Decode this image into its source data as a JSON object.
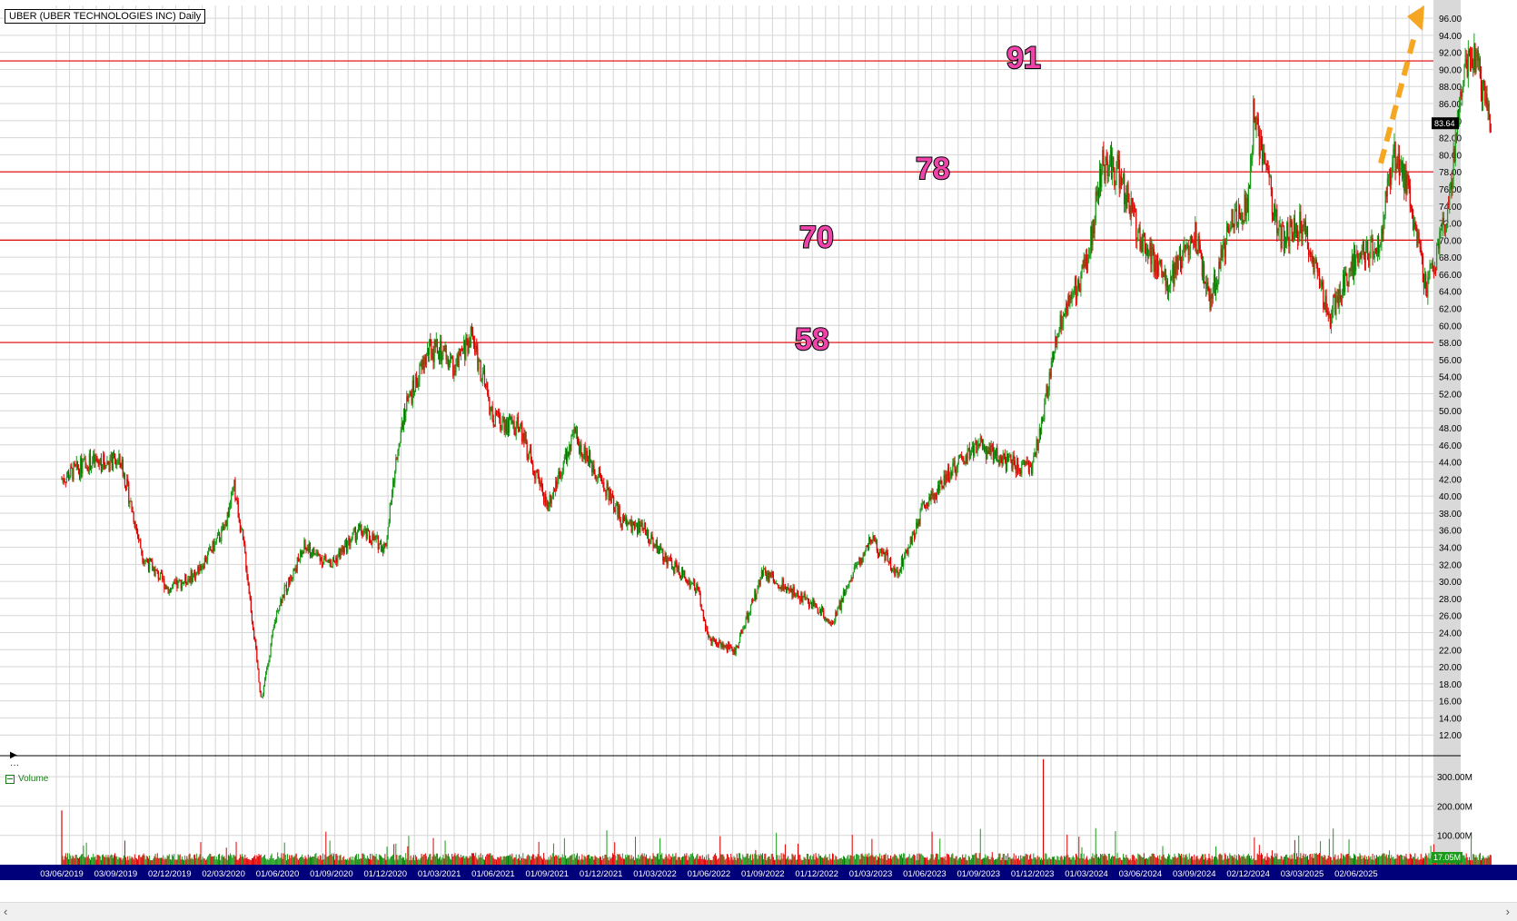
{
  "title": "UBER (UBER TECHNOLOGIES INC) Daily",
  "volume_label": "Volume",
  "last_price_label": "83.64",
  "last_volume_label": "17.05M",
  "colors": {
    "up": "#1a9a1a",
    "down": "#e00000",
    "grid": "#d6d6d6",
    "level": "#e00000",
    "axis_bg": "#d9d9d9",
    "date_bar": "#00007a",
    "level_text": "#ee44aa",
    "arrow": "#f5a623"
  },
  "chart_data": {
    "type": "candlestick",
    "title": "UBER (UBER TECHNOLOGIES INC) Daily",
    "x_labels": [
      "03/06/2019",
      "03/09/2019",
      "02/12/2019",
      "02/03/2020",
      "01/06/2020",
      "01/09/2020",
      "01/12/2020",
      "01/03/2021",
      "01/06/2021",
      "01/09/2021",
      "01/12/2021",
      "01/03/2022",
      "01/06/2022",
      "01/09/2022",
      "01/12/2022",
      "01/03/2023",
      "01/06/2023",
      "01/09/2023",
      "01/12/2023",
      "01/03/2024",
      "03/06/2024",
      "03/09/2024",
      "02/12/2024",
      "03/03/2025",
      "02/06/2025"
    ],
    "y_ticks": [
      "12.00",
      "14.00",
      "16.00",
      "18.00",
      "20.00",
      "22.00",
      "24.00",
      "26.00",
      "28.00",
      "30.00",
      "32.00",
      "34.00",
      "36.00",
      "38.00",
      "40.00",
      "42.00",
      "44.00",
      "46.00",
      "48.00",
      "50.00",
      "52.00",
      "54.00",
      "56.00",
      "58.00",
      "60.00",
      "62.00",
      "64.00",
      "66.00",
      "68.00",
      "70.00",
      "72.00",
      "74.00",
      "76.00",
      "78.00",
      "80.00",
      "82.00",
      "84.00",
      "86.00",
      "88.00",
      "90.00",
      "92.00",
      "94.00",
      "96.00"
    ],
    "ylim": [
      10,
      97.5
    ],
    "price_path": [
      {
        "x": 0,
        "y": 42
      },
      {
        "x": 0.5,
        "y": 44
      },
      {
        "x": 1.1,
        "y": 44
      },
      {
        "x": 1.5,
        "y": 33
      },
      {
        "x": 2.0,
        "y": 29
      },
      {
        "x": 2.5,
        "y": 31
      },
      {
        "x": 3.0,
        "y": 36
      },
      {
        "x": 3.2,
        "y": 41
      },
      {
        "x": 3.4,
        "y": 33
      },
      {
        "x": 3.7,
        "y": 16
      },
      {
        "x": 4.0,
        "y": 27
      },
      {
        "x": 4.5,
        "y": 34
      },
      {
        "x": 5.0,
        "y": 32
      },
      {
        "x": 5.5,
        "y": 36
      },
      {
        "x": 6.0,
        "y": 34
      },
      {
        "x": 6.3,
        "y": 49
      },
      {
        "x": 6.8,
        "y": 57
      },
      {
        "x": 7.0,
        "y": 57
      },
      {
        "x": 7.3,
        "y": 55
      },
      {
        "x": 7.6,
        "y": 59
      },
      {
        "x": 8.0,
        "y": 49
      },
      {
        "x": 8.5,
        "y": 48
      },
      {
        "x": 9.0,
        "y": 39
      },
      {
        "x": 9.5,
        "y": 47
      },
      {
        "x": 10.0,
        "y": 42
      },
      {
        "x": 10.4,
        "y": 37
      },
      {
        "x": 10.8,
        "y": 36
      },
      {
        "x": 11.3,
        "y": 32
      },
      {
        "x": 11.8,
        "y": 29
      },
      {
        "x": 12.0,
        "y": 23
      },
      {
        "x": 12.5,
        "y": 22
      },
      {
        "x": 13.0,
        "y": 31
      },
      {
        "x": 13.5,
        "y": 29
      },
      {
        "x": 14.0,
        "y": 27
      },
      {
        "x": 14.3,
        "y": 25
      },
      {
        "x": 14.6,
        "y": 30
      },
      {
        "x": 15.0,
        "y": 35
      },
      {
        "x": 15.5,
        "y": 31
      },
      {
        "x": 16.0,
        "y": 39
      },
      {
        "x": 16.5,
        "y": 43
      },
      {
        "x": 17.0,
        "y": 46
      },
      {
        "x": 17.5,
        "y": 44
      },
      {
        "x": 18.0,
        "y": 43
      },
      {
        "x": 18.5,
        "y": 60
      },
      {
        "x": 19.0,
        "y": 67
      },
      {
        "x": 19.3,
        "y": 79
      },
      {
        "x": 19.6,
        "y": 78
      },
      {
        "x": 20.0,
        "y": 70
      },
      {
        "x": 20.5,
        "y": 65
      },
      {
        "x": 21.0,
        "y": 71
      },
      {
        "x": 21.3,
        "y": 63
      },
      {
        "x": 21.7,
        "y": 73
      },
      {
        "x": 22.0,
        "y": 74
      },
      {
        "x": 22.1,
        "y": 85
      },
      {
        "x": 22.3,
        "y": 79
      },
      {
        "x": 22.6,
        "y": 70
      },
      {
        "x": 23.0,
        "y": 72
      },
      {
        "x": 23.5,
        "y": 61
      },
      {
        "x": 24.0,
        "y": 68
      },
      {
        "x": 24.4,
        "y": 69
      },
      {
        "x": 24.7,
        "y": 80
      },
      {
        "x": 25.0,
        "y": 75
      },
      {
        "x": 25.3,
        "y": 64
      },
      {
        "x": 25.7,
        "y": 73
      },
      {
        "x": 26.0,
        "y": 90
      },
      {
        "x": 26.2,
        "y": 92
      },
      {
        "x": 26.5,
        "y": 83.64
      }
    ],
    "levels": [
      58,
      70,
      78,
      91
    ],
    "volume": {
      "ticks": [
        "100.00M",
        "200.00M",
        "300.00M"
      ],
      "ylim": [
        0,
        350
      ],
      "spikes": [
        {
          "x": 0,
          "v": 185
        },
        {
          "x": 18.2,
          "v": 360
        }
      ]
    }
  },
  "annotations": {
    "levels": [
      "58",
      "70",
      "78",
      "91"
    ]
  }
}
